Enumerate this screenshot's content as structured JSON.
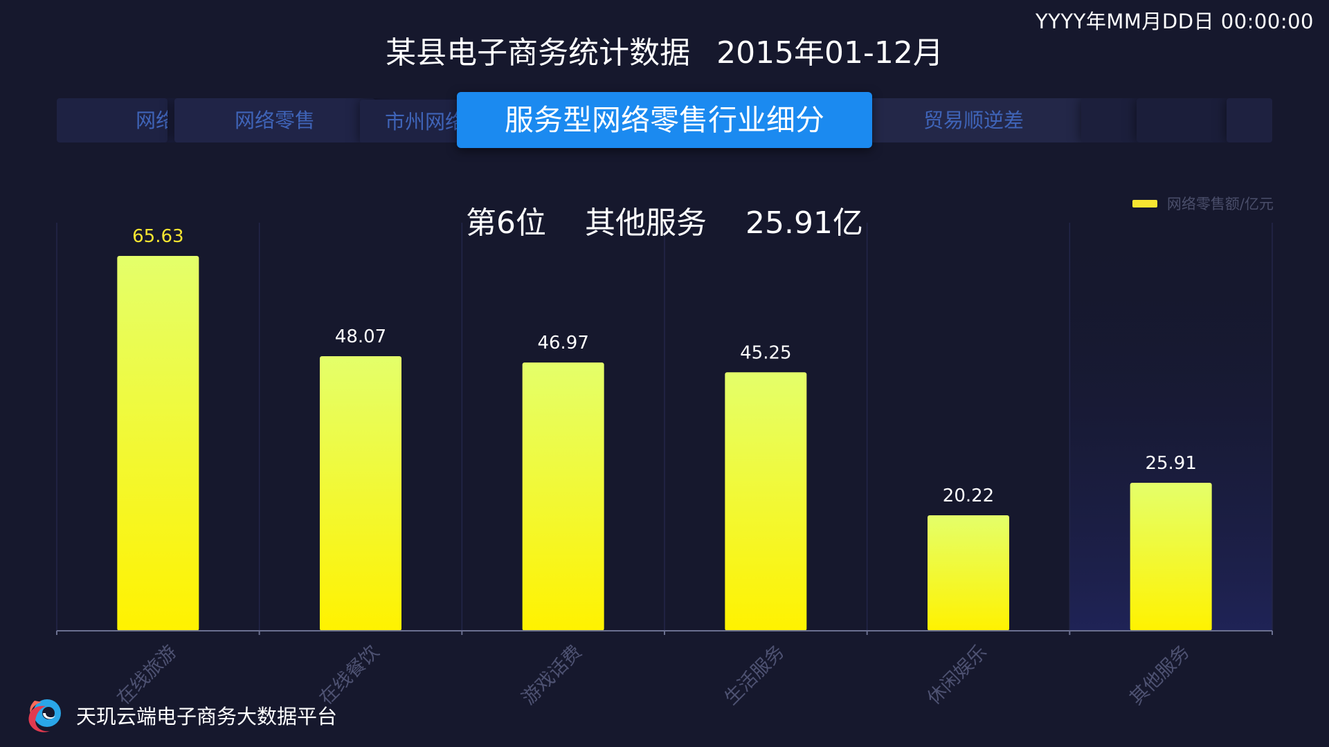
{
  "header": {
    "clock": "YYYY年MM月DD日 00:00:00",
    "title_main": "某县电子商务统计数据",
    "title_period": "2015年01-12月"
  },
  "tabs": [
    {
      "label": "网络零售"
    },
    {
      "label": "网络零售"
    },
    {
      "label": "市州网络零售"
    },
    {
      "label": "贸易顺逆差"
    },
    {
      "label": ""
    },
    {
      "label": ""
    },
    {
      "label": ""
    }
  ],
  "active_tab": {
    "label": "服务型网络零售行业细分"
  },
  "highlight": {
    "rank": "第6位",
    "category": "其他服务",
    "value": "25.91亿"
  },
  "brand": {
    "name": "天玑云端电子商务大数据平台",
    "logo_icon": "tianji-cloud-logo-icon"
  },
  "colors": {
    "bar_top": "#e4ff6a",
    "bar_bottom": "#fff200",
    "highlight_band": "#1f2356",
    "axis": "#6b7090",
    "grid": "#23264a",
    "label_first": "#f7e531",
    "label_normal": "#ffffff",
    "category_label": "#4e5272"
  },
  "chart_data": {
    "type": "bar",
    "categories": [
      "在线旅游",
      "在线餐饮",
      "游戏话费",
      "生活服务",
      "休闲娱乐",
      "其他服务"
    ],
    "series": [
      {
        "name": "网络零售额/亿元",
        "values": [
          65.63,
          48.07,
          46.97,
          45.25,
          20.22,
          25.91
        ]
      }
    ],
    "ylim": [
      0,
      72
    ],
    "highlight_index": 5,
    "legend_position": "top-right",
    "grid": "vertical"
  }
}
